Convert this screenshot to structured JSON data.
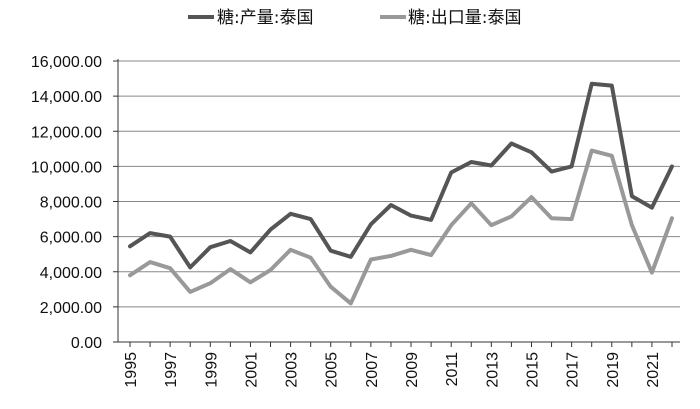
{
  "chart_data": {
    "type": "line",
    "title": "",
    "xlabel": "",
    "ylabel": "",
    "x": [
      1995,
      1996,
      1997,
      1998,
      1999,
      2000,
      2001,
      2002,
      2003,
      2004,
      2005,
      2006,
      2007,
      2008,
      2009,
      2010,
      2011,
      2012,
      2013,
      2014,
      2015,
      2016,
      2017,
      2018,
      2019,
      2020,
      2021,
      2022
    ],
    "x_tick_labels": [
      "1995",
      "1997",
      "1999",
      "2001",
      "2003",
      "2005",
      "2007",
      "2009",
      "2011",
      "2013",
      "2015",
      "2017",
      "2019",
      "2021"
    ],
    "ylim": [
      0,
      16000
    ],
    "y_tick_labels": [
      "0.00",
      "2,000.00",
      "4,000.00",
      "6,000.00",
      "8,000.00",
      "10,000.00",
      "12,000.00",
      "14,000.00",
      "16,000.00"
    ],
    "y_tick_values": [
      0,
      2000,
      4000,
      6000,
      8000,
      10000,
      12000,
      14000,
      16000
    ],
    "grid": true,
    "legend_position": "top",
    "series": [
      {
        "name": "糖:产量:泰国",
        "color": "#555555",
        "values": [
          5450,
          6200,
          6000,
          4250,
          5400,
          5750,
          5100,
          6400,
          7300,
          7000,
          5200,
          4850,
          6700,
          7800,
          7200,
          6950,
          9650,
          10250,
          10050,
          11300,
          10800,
          9700,
          10000,
          14700,
          14600,
          8300,
          7650,
          10000
        ]
      },
      {
        "name": "糖:出口量:泰国",
        "color": "#999999",
        "values": [
          3800,
          4550,
          4200,
          2850,
          3350,
          4150,
          3400,
          4100,
          5250,
          4800,
          3150,
          2200,
          4700,
          4900,
          5250,
          4950,
          6650,
          7900,
          6650,
          7150,
          8250,
          7050,
          7000,
          10900,
          10600,
          6650,
          3950,
          7050
        ]
      }
    ]
  }
}
